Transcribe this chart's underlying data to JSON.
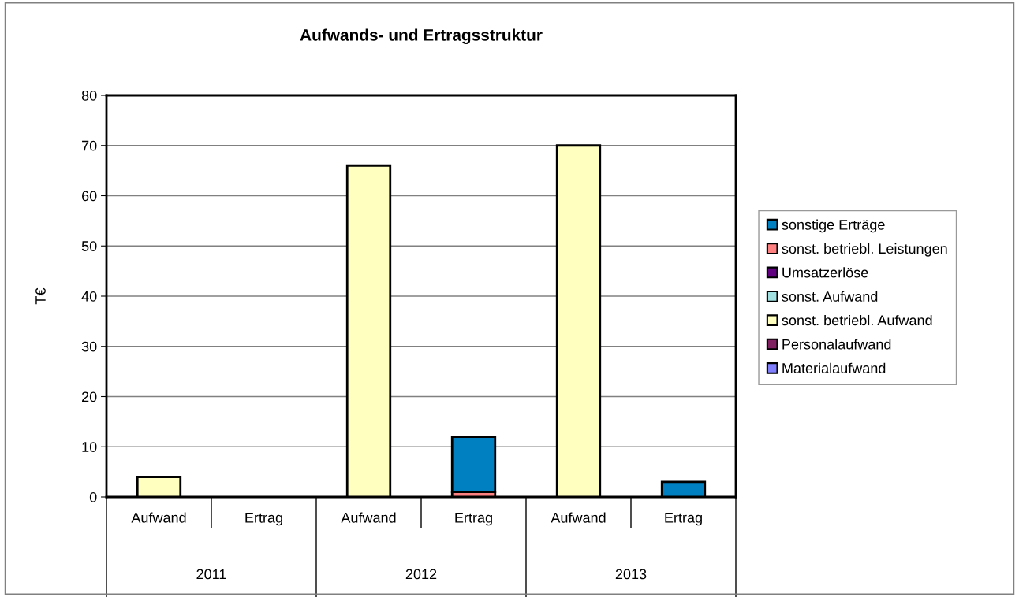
{
  "chart_data": {
    "type": "bar",
    "title": "Aufwands- und Ertragsstruktur",
    "ylabel": "T€",
    "stacked": true,
    "categories": [
      "Aufwand",
      "Ertrag",
      "Aufwand",
      "Ertrag",
      "Aufwand",
      "Ertrag"
    ],
    "annotations": [
      "2011",
      "2012",
      "2013"
    ],
    "series": [
      {
        "name": "Materialaufwand",
        "color": "#8080ff",
        "values": [
          null,
          null,
          null,
          null,
          null,
          null
        ]
      },
      {
        "name": "Personalaufwand",
        "color": "#802060",
        "values": [
          null,
          null,
          null,
          null,
          null,
          null
        ]
      },
      {
        "name": "sonst. betriebl. Aufwand",
        "color": "#ffffc0",
        "values": [
          4,
          null,
          66,
          null,
          70,
          null
        ]
      },
      {
        "name": "sonst. Aufwand",
        "color": "#a0e0e0",
        "values": [
          null,
          null,
          null,
          null,
          null,
          null
        ]
      },
      {
        "name": "Umsatzerlöse",
        "color": "#600080",
        "values": [
          null,
          null,
          null,
          null,
          null,
          null
        ]
      },
      {
        "name": "sonst. betriebl. Leistungen",
        "color": "#ff8080",
        "values": [
          null,
          null,
          null,
          1,
          null,
          null
        ]
      },
      {
        "name": "sonstige Erträge",
        "color": "#0080c0",
        "values": [
          null,
          null,
          null,
          11,
          null,
          3
        ]
      }
    ],
    "ylim": [
      0,
      80
    ],
    "yticks": [
      0,
      10,
      20,
      30,
      40,
      50,
      60,
      70,
      80
    ],
    "grid": "y",
    "legend": "right"
  }
}
